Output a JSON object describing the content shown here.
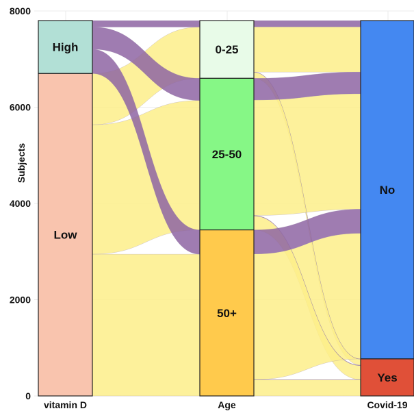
{
  "chart_data": {
    "type": "alluvial",
    "ylabel": "Subjects",
    "ylim": [
      0,
      8000
    ],
    "yticks": [
      0,
      2000,
      4000,
      6000,
      8000
    ],
    "grid": true,
    "total": 7800,
    "axes": [
      {
        "label": "vitamin D",
        "strata": [
          {
            "name": "High",
            "value": 1100,
            "color": "#b2e0d6"
          },
          {
            "name": "Low",
            "value": 6700,
            "color": "#f9c4ae"
          }
        ]
      },
      {
        "label": "Age",
        "strata": [
          {
            "name": "0-25",
            "value": 1200,
            "color": "#e8fbe8"
          },
          {
            "name": "25-50",
            "value": 3150,
            "color": "#86f786"
          },
          {
            "name": "50+",
            "value": 3450,
            "color": "#ffca4c"
          }
        ]
      },
      {
        "label": "Covid-19",
        "strata": [
          {
            "name": "No",
            "value": 7030,
            "color": "#4488f1"
          },
          {
            "name": "Yes",
            "value": 770,
            "color": "#e05038"
          }
        ]
      }
    ],
    "flow_colors": {
      "High": "#8e65a3",
      "Low": "#fdee8a"
    },
    "flows": [
      {
        "vitd": "High",
        "age": "0-25",
        "covid": "No",
        "value": 130
      },
      {
        "vitd": "High",
        "age": "0-25",
        "covid": "Yes",
        "value": 5
      },
      {
        "vitd": "High",
        "age": "25-50",
        "covid": "No",
        "value": 450
      },
      {
        "vitd": "High",
        "age": "25-50",
        "covid": "Yes",
        "value": 10
      },
      {
        "vitd": "High",
        "age": "50+",
        "covid": "No",
        "value": 500
      },
      {
        "vitd": "High",
        "age": "50+",
        "covid": "Yes",
        "value": 5
      },
      {
        "vitd": "Low",
        "age": "0-25",
        "covid": "No",
        "value": 940
      },
      {
        "vitd": "Low",
        "age": "0-25",
        "covid": "Yes",
        "value": 125
      },
      {
        "vitd": "Low",
        "age": "25-50",
        "covid": "No",
        "value": 2400
      },
      {
        "vitd": "Low",
        "age": "25-50",
        "covid": "Yes",
        "value": 290
      },
      {
        "vitd": "Low",
        "age": "50+",
        "covid": "No",
        "value": 2610
      },
      {
        "vitd": "Low",
        "age": "50+",
        "covid": "Yes",
        "value": 335
      }
    ]
  }
}
